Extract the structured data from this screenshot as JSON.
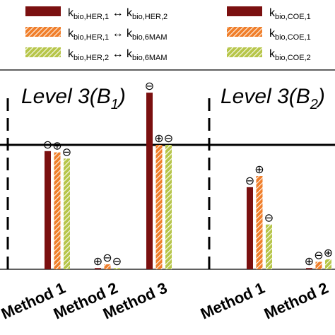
{
  "chart_data": {
    "type": "bar",
    "legend_placement": "top",
    "reference_line": 1.0,
    "ylim": [
      0,
      1.55
    ],
    "grid": false,
    "colors": {
      "series_1": "#7b1010",
      "series_2": "#f07f2b",
      "series_3": "#b7c64a",
      "hatch_stripe": "#ffffff",
      "axis": "#000000"
    },
    "legend": [
      {
        "base": "k",
        "sub_a": "bio,HER,1",
        "arrow": "↔",
        "base_b": "k",
        "sub_b": "bio,HER,2",
        "series": 1
      },
      {
        "base": "k",
        "sub_a": "bio,HER,1",
        "arrow": "↔",
        "base_b": "k",
        "sub_b": "bio,6MAM",
        "series": 2
      },
      {
        "base": "k",
        "sub_a": "bio,HER,2",
        "arrow": "↔",
        "base_b": "k",
        "sub_b": "bio,6MAM",
        "series": 3
      },
      {
        "base": "k",
        "sub_a": "bio,COE,1",
        "series": 1
      },
      {
        "base": "k",
        "sub_a": "bio,COE,1",
        "series": 2
      },
      {
        "base": "k",
        "sub_a": "bio,COE,2",
        "series": 3
      }
    ],
    "panels": [
      {
        "title_main": "Level 3(B",
        "title_sub": "1",
        "title_end": ")",
        "categories": [
          "Method 1",
          "Method 2",
          "Method 3"
        ],
        "values": [
          [
            0.95,
            0.01,
            1.42
          ],
          [
            0.94,
            0.04,
            1.0
          ],
          [
            0.89,
            0.01,
            1.0
          ]
        ],
        "signs": [
          [
            "⊖",
            "⊕",
            "⊖"
          ],
          [
            "⊕",
            "⊖",
            "⊕"
          ],
          [
            "⊖",
            "⊖",
            "⊖"
          ]
        ]
      },
      {
        "title_main": "Level 3(B",
        "title_sub": "2",
        "title_end": ")",
        "categories": [
          "Method 1",
          "Method 2"
        ],
        "values": [
          [
            0.66,
            0.01
          ],
          [
            0.75,
            0.06
          ],
          [
            0.36,
            0.08
          ]
        ],
        "signs": [
          [
            "⊖",
            "⊕"
          ],
          [
            "⊕",
            "⊖"
          ],
          [
            "⊖",
            "⊕"
          ]
        ]
      }
    ]
  }
}
